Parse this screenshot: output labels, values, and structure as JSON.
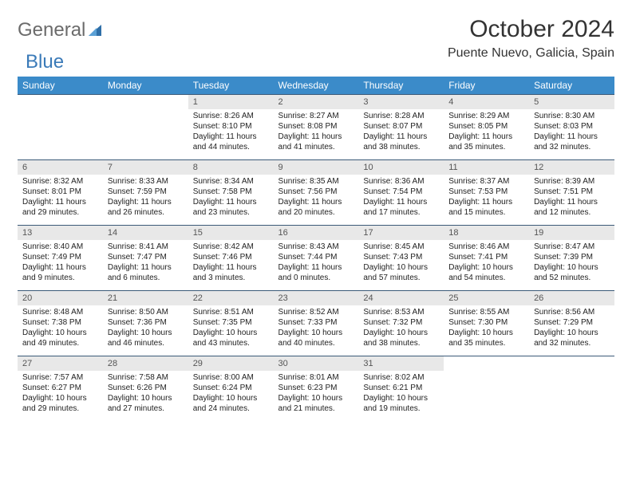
{
  "brand": {
    "part1": "General",
    "part2": "Blue"
  },
  "title": "October 2024",
  "location": "Puente Nuevo, Galicia, Spain",
  "colors": {
    "header_bg": "#3b8bc9",
    "header_text": "#ffffff",
    "daynum_bg": "#e8e8e8",
    "border": "#3b5a78",
    "brand_gray": "#6b6b6b",
    "brand_blue": "#3a7ab8"
  },
  "weekdays": [
    "Sunday",
    "Monday",
    "Tuesday",
    "Wednesday",
    "Thursday",
    "Friday",
    "Saturday"
  ],
  "weeks": [
    [
      {
        "n": "",
        "sr": "",
        "ss": "",
        "dl": ""
      },
      {
        "n": "",
        "sr": "",
        "ss": "",
        "dl": ""
      },
      {
        "n": "1",
        "sr": "Sunrise: 8:26 AM",
        "ss": "Sunset: 8:10 PM",
        "dl": "Daylight: 11 hours and 44 minutes."
      },
      {
        "n": "2",
        "sr": "Sunrise: 8:27 AM",
        "ss": "Sunset: 8:08 PM",
        "dl": "Daylight: 11 hours and 41 minutes."
      },
      {
        "n": "3",
        "sr": "Sunrise: 8:28 AM",
        "ss": "Sunset: 8:07 PM",
        "dl": "Daylight: 11 hours and 38 minutes."
      },
      {
        "n": "4",
        "sr": "Sunrise: 8:29 AM",
        "ss": "Sunset: 8:05 PM",
        "dl": "Daylight: 11 hours and 35 minutes."
      },
      {
        "n": "5",
        "sr": "Sunrise: 8:30 AM",
        "ss": "Sunset: 8:03 PM",
        "dl": "Daylight: 11 hours and 32 minutes."
      }
    ],
    [
      {
        "n": "6",
        "sr": "Sunrise: 8:32 AM",
        "ss": "Sunset: 8:01 PM",
        "dl": "Daylight: 11 hours and 29 minutes."
      },
      {
        "n": "7",
        "sr": "Sunrise: 8:33 AM",
        "ss": "Sunset: 7:59 PM",
        "dl": "Daylight: 11 hours and 26 minutes."
      },
      {
        "n": "8",
        "sr": "Sunrise: 8:34 AM",
        "ss": "Sunset: 7:58 PM",
        "dl": "Daylight: 11 hours and 23 minutes."
      },
      {
        "n": "9",
        "sr": "Sunrise: 8:35 AM",
        "ss": "Sunset: 7:56 PM",
        "dl": "Daylight: 11 hours and 20 minutes."
      },
      {
        "n": "10",
        "sr": "Sunrise: 8:36 AM",
        "ss": "Sunset: 7:54 PM",
        "dl": "Daylight: 11 hours and 17 minutes."
      },
      {
        "n": "11",
        "sr": "Sunrise: 8:37 AM",
        "ss": "Sunset: 7:53 PM",
        "dl": "Daylight: 11 hours and 15 minutes."
      },
      {
        "n": "12",
        "sr": "Sunrise: 8:39 AM",
        "ss": "Sunset: 7:51 PM",
        "dl": "Daylight: 11 hours and 12 minutes."
      }
    ],
    [
      {
        "n": "13",
        "sr": "Sunrise: 8:40 AM",
        "ss": "Sunset: 7:49 PM",
        "dl": "Daylight: 11 hours and 9 minutes."
      },
      {
        "n": "14",
        "sr": "Sunrise: 8:41 AM",
        "ss": "Sunset: 7:47 PM",
        "dl": "Daylight: 11 hours and 6 minutes."
      },
      {
        "n": "15",
        "sr": "Sunrise: 8:42 AM",
        "ss": "Sunset: 7:46 PM",
        "dl": "Daylight: 11 hours and 3 minutes."
      },
      {
        "n": "16",
        "sr": "Sunrise: 8:43 AM",
        "ss": "Sunset: 7:44 PM",
        "dl": "Daylight: 11 hours and 0 minutes."
      },
      {
        "n": "17",
        "sr": "Sunrise: 8:45 AM",
        "ss": "Sunset: 7:43 PM",
        "dl": "Daylight: 10 hours and 57 minutes."
      },
      {
        "n": "18",
        "sr": "Sunrise: 8:46 AM",
        "ss": "Sunset: 7:41 PM",
        "dl": "Daylight: 10 hours and 54 minutes."
      },
      {
        "n": "19",
        "sr": "Sunrise: 8:47 AM",
        "ss": "Sunset: 7:39 PM",
        "dl": "Daylight: 10 hours and 52 minutes."
      }
    ],
    [
      {
        "n": "20",
        "sr": "Sunrise: 8:48 AM",
        "ss": "Sunset: 7:38 PM",
        "dl": "Daylight: 10 hours and 49 minutes."
      },
      {
        "n": "21",
        "sr": "Sunrise: 8:50 AM",
        "ss": "Sunset: 7:36 PM",
        "dl": "Daylight: 10 hours and 46 minutes."
      },
      {
        "n": "22",
        "sr": "Sunrise: 8:51 AM",
        "ss": "Sunset: 7:35 PM",
        "dl": "Daylight: 10 hours and 43 minutes."
      },
      {
        "n": "23",
        "sr": "Sunrise: 8:52 AM",
        "ss": "Sunset: 7:33 PM",
        "dl": "Daylight: 10 hours and 40 minutes."
      },
      {
        "n": "24",
        "sr": "Sunrise: 8:53 AM",
        "ss": "Sunset: 7:32 PM",
        "dl": "Daylight: 10 hours and 38 minutes."
      },
      {
        "n": "25",
        "sr": "Sunrise: 8:55 AM",
        "ss": "Sunset: 7:30 PM",
        "dl": "Daylight: 10 hours and 35 minutes."
      },
      {
        "n": "26",
        "sr": "Sunrise: 8:56 AM",
        "ss": "Sunset: 7:29 PM",
        "dl": "Daylight: 10 hours and 32 minutes."
      }
    ],
    [
      {
        "n": "27",
        "sr": "Sunrise: 7:57 AM",
        "ss": "Sunset: 6:27 PM",
        "dl": "Daylight: 10 hours and 29 minutes."
      },
      {
        "n": "28",
        "sr": "Sunrise: 7:58 AM",
        "ss": "Sunset: 6:26 PM",
        "dl": "Daylight: 10 hours and 27 minutes."
      },
      {
        "n": "29",
        "sr": "Sunrise: 8:00 AM",
        "ss": "Sunset: 6:24 PM",
        "dl": "Daylight: 10 hours and 24 minutes."
      },
      {
        "n": "30",
        "sr": "Sunrise: 8:01 AM",
        "ss": "Sunset: 6:23 PM",
        "dl": "Daylight: 10 hours and 21 minutes."
      },
      {
        "n": "31",
        "sr": "Sunrise: 8:02 AM",
        "ss": "Sunset: 6:21 PM",
        "dl": "Daylight: 10 hours and 19 minutes."
      },
      {
        "n": "",
        "sr": "",
        "ss": "",
        "dl": ""
      },
      {
        "n": "",
        "sr": "",
        "ss": "",
        "dl": ""
      }
    ]
  ]
}
